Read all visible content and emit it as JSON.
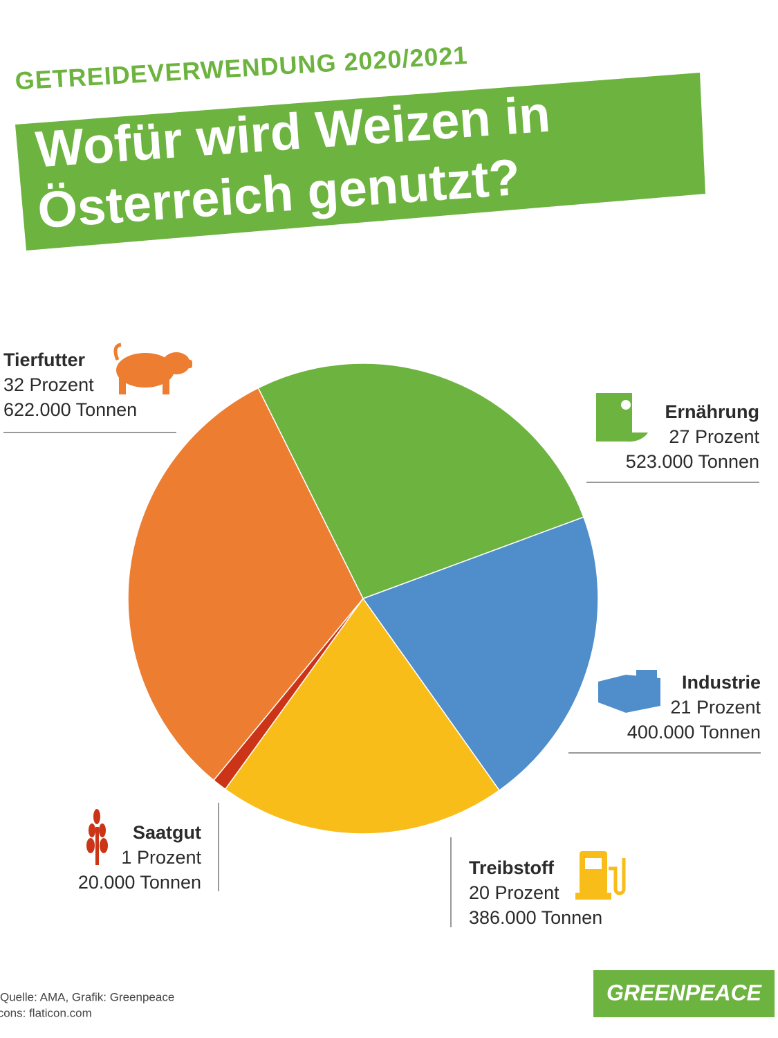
{
  "chart_data": {
    "type": "pie",
    "supertitle": "GETREIDEVERWENDUNG 2020/2021",
    "title_lines": [
      "Wofür wird Weizen in",
      "Österreich genutzt?"
    ],
    "categories": [
      "Ernährung",
      "Industrie",
      "Treibstoff",
      "Saatgut",
      "Tierfutter"
    ],
    "values": [
      27,
      21,
      20,
      1,
      32
    ],
    "value_labels": [
      "27 Prozent",
      "21 Prozent",
      "20 Prozent",
      "1 Prozent",
      "32 Prozent"
    ],
    "tonnage_labels": [
      "523.000 Tonnen",
      "400.000 Tonnen",
      "386.000 Tonnen",
      "20.000 Tonnen",
      "622.000 Tonnen"
    ],
    "colors": [
      "#6db33f",
      "#4f8ecb",
      "#f9bd19",
      "#cc3417",
      "#ed7d31"
    ],
    "source_lines": [
      "Quelle: AMA, Grafik: Greenpeace",
      "Icons: flaticon.com"
    ],
    "logo": "GREENPEACE"
  }
}
